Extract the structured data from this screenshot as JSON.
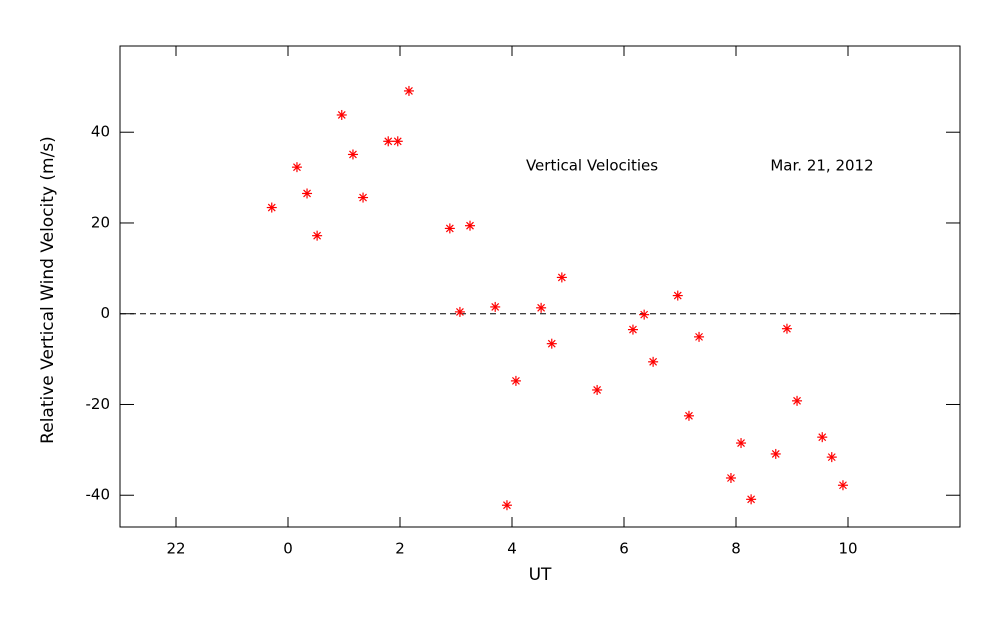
{
  "chart_data": {
    "type": "scatter",
    "annotations": [
      "Vertical Velocities",
      "Mar. 21, 2012"
    ],
    "xlabel": "UT",
    "ylabel": "Relative Vertical Wind Velocity (m/s)",
    "color": "#ff0000",
    "hline": 0,
    "xlim": [
      -3,
      12
    ],
    "xticks": [
      {
        "value": -2,
        "label": "22"
      },
      0,
      2,
      4,
      6,
      8,
      10
    ],
    "ylim": [
      -47,
      59
    ],
    "yticks": [
      -40,
      -20,
      0,
      20,
      40
    ],
    "x": [
      -0.29,
      0.16,
      0.34,
      0.52,
      0.96,
      1.16,
      1.34,
      1.79,
      1.96,
      2.16,
      2.89,
      3.25,
      3.07,
      3.7,
      3.91,
      4.07,
      4.52,
      4.71,
      4.89,
      5.52,
      6.16,
      6.36,
      6.52,
      6.96,
      7.16,
      7.34,
      7.91,
      8.09,
      8.27,
      8.71,
      8.91,
      9.09,
      9.54,
      9.71,
      9.91
    ],
    "values": [
      23.4,
      32.3,
      26.5,
      17.2,
      43.8,
      35.1,
      25.6,
      38.0,
      38.0,
      49.1,
      18.8,
      19.4,
      0.4,
      1.5,
      -42.2,
      -14.8,
      1.3,
      -6.6,
      8.0,
      -16.8,
      -3.5,
      -0.2,
      -10.6,
      4.0,
      -22.5,
      -5.1,
      -36.2,
      -28.5,
      -40.9,
      -30.9,
      -3.3,
      -19.2,
      -27.2,
      -31.6,
      -37.8
    ]
  }
}
